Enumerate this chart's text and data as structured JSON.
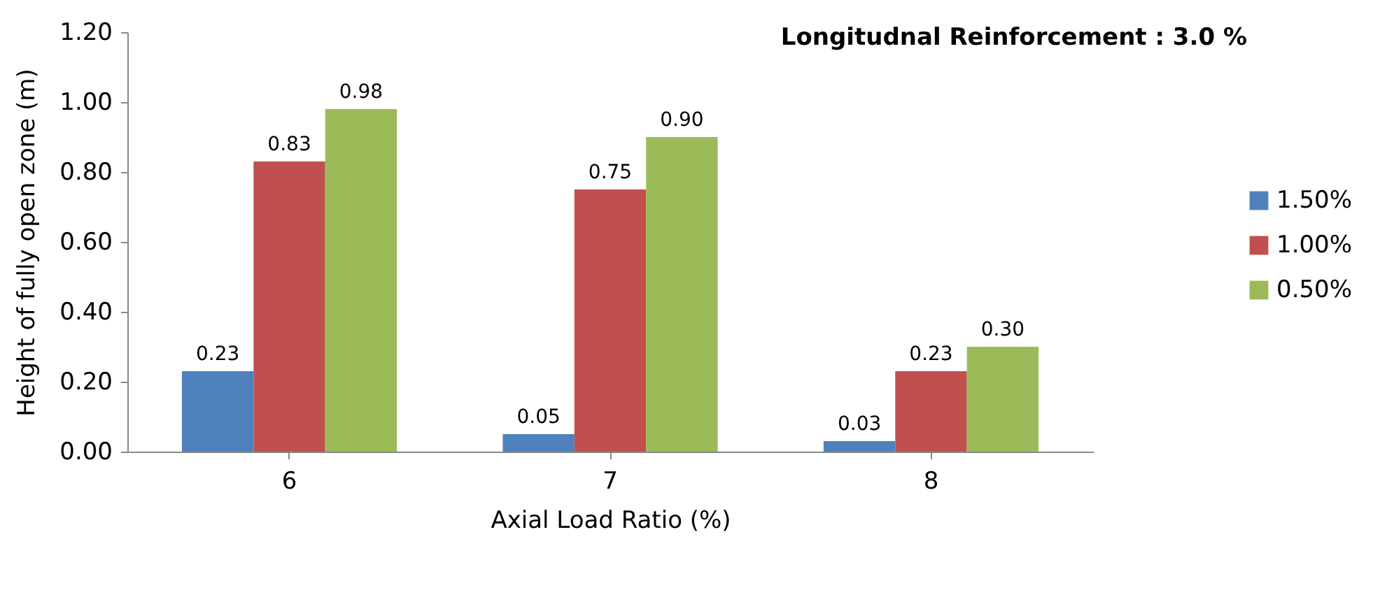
{
  "chart_data": {
    "type": "bar",
    "title": "Longitudnal Reinforcement : 3.0 %",
    "xlabel": "Axial Load Ratio (%)",
    "ylabel": "Height of fully open zone (m)",
    "categories": [
      "6",
      "7",
      "8"
    ],
    "series": [
      {
        "name": "1.50%",
        "color": "#4f81bd",
        "values": [
          0.23,
          0.05,
          0.03
        ],
        "value_labels": [
          "0.23",
          "0.05",
          "0.03"
        ]
      },
      {
        "name": "1.00%",
        "color": "#c0504d",
        "values": [
          0.83,
          0.75,
          0.23
        ],
        "value_labels": [
          "0.83",
          "0.75",
          "0.23"
        ]
      },
      {
        "name": "0.50%",
        "color": "#9bbb59",
        "values": [
          0.98,
          0.9,
          0.3
        ],
        "value_labels": [
          "0.98",
          "0.90",
          "0.30"
        ]
      }
    ],
    "ylim": [
      0,
      1.2
    ],
    "yticks": [
      {
        "value": 0,
        "label": "0.00"
      },
      {
        "value": 0.2,
        "label": "0.20"
      },
      {
        "value": 0.4,
        "label": "0.40"
      },
      {
        "value": 0.6,
        "label": "0.60"
      },
      {
        "value": 0.8,
        "label": "0.80"
      },
      {
        "value": 1.0,
        "label": "1.00"
      },
      {
        "value": 1.2,
        "label": "1.20"
      }
    ],
    "grid": false,
    "legend": "right"
  }
}
